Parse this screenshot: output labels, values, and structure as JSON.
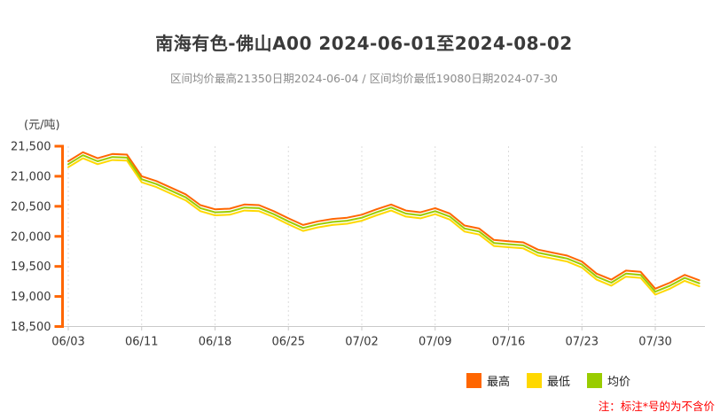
{
  "header": {
    "title": "南海有色-佛山A00 2024-06-01至2024-08-02",
    "subtitle": "区间均价最高21350日期2024-06-04 / 区间均价最低19080日期2024-07-30"
  },
  "chart_data": {
    "type": "line",
    "title": "南海有色-佛山A00 2024-06-01至2024-08-02",
    "y_unit": "(元/吨)",
    "ylim": [
      18500,
      21500
    ],
    "y_ticks": [
      21500,
      21000,
      20500,
      20000,
      19500,
      19000,
      18500
    ],
    "y_tick_labels": [
      "21,500",
      "21,000",
      "20,500",
      "20,000",
      "19,500",
      "19,000",
      "18,500"
    ],
    "grid": "vertical-dashed",
    "legend_position": "bottom-right",
    "x": [
      "06/03",
      "06/04",
      "06/05",
      "06/06",
      "06/07",
      "06/11",
      "06/12",
      "06/13",
      "06/14",
      "06/17",
      "06/18",
      "06/19",
      "06/20",
      "06/21",
      "06/24",
      "06/25",
      "06/26",
      "06/27",
      "06/28",
      "07/01",
      "07/02",
      "07/03",
      "07/04",
      "07/05",
      "07/08",
      "07/09",
      "07/10",
      "07/11",
      "07/12",
      "07/15",
      "07/16",
      "07/17",
      "07/18",
      "07/19",
      "07/22",
      "07/23",
      "07/24",
      "07/25",
      "07/26",
      "07/29",
      "07/30",
      "07/31",
      "08/01",
      "08/02"
    ],
    "x_tick_indices": [
      0,
      5,
      10,
      15,
      20,
      25,
      30,
      35,
      40
    ],
    "x_tick_labels": [
      "06/03",
      "06/11",
      "06/18",
      "06/25",
      "07/02",
      "07/09",
      "07/16",
      "07/23",
      "07/30"
    ],
    "series": [
      {
        "name": "最高",
        "key": "high",
        "color": "#ff6600",
        "values": [
          21250,
          21400,
          21300,
          21370,
          21360,
          21000,
          20920,
          20810,
          20700,
          20520,
          20450,
          20460,
          20530,
          20520,
          20420,
          20300,
          20190,
          20250,
          20290,
          20310,
          20360,
          20450,
          20530,
          20430,
          20400,
          20470,
          20380,
          20180,
          20130,
          19940,
          19920,
          19900,
          19780,
          19730,
          19680,
          19580,
          19380,
          19280,
          19430,
          19410,
          19130,
          19230,
          19360,
          19270
        ]
      },
      {
        "name": "最低",
        "key": "low",
        "color": "#ffd800",
        "values": [
          21150,
          21300,
          21200,
          21270,
          21260,
          20900,
          20820,
          20710,
          20600,
          20420,
          20350,
          20360,
          20430,
          20420,
          20320,
          20200,
          20090,
          20150,
          20190,
          20210,
          20260,
          20350,
          20430,
          20330,
          20300,
          20370,
          20280,
          20080,
          20030,
          19840,
          19820,
          19800,
          19680,
          19630,
          19580,
          19480,
          19280,
          19180,
          19330,
          19310,
          19030,
          19130,
          19260,
          19170
        ]
      },
      {
        "name": "均价",
        "key": "avg",
        "color": "#99cc00",
        "values": [
          21200,
          21350,
          21250,
          21320,
          21310,
          20950,
          20870,
          20760,
          20650,
          20470,
          20400,
          20410,
          20480,
          20470,
          20370,
          20250,
          20140,
          20200,
          20240,
          20260,
          20310,
          20400,
          20480,
          20380,
          20350,
          20420,
          20330,
          20130,
          20080,
          19890,
          19870,
          19850,
          19730,
          19680,
          19630,
          19530,
          19330,
          19230,
          19380,
          19360,
          19080,
          19180,
          19310,
          19220
        ]
      }
    ],
    "annotations": {
      "max_avg": {
        "value": 21350,
        "date": "2024-06-04"
      },
      "min_avg": {
        "value": 19080,
        "date": "2024-07-30"
      }
    }
  },
  "footnote": {
    "text": "注：标注*号的为不含价",
    "color": "#ff0000"
  },
  "style_colors": {
    "y_axis": "#ff6600",
    "x_axis": "#c9c9c9",
    "gridline": "#dcdcdc",
    "tick_text": "#383838"
  }
}
